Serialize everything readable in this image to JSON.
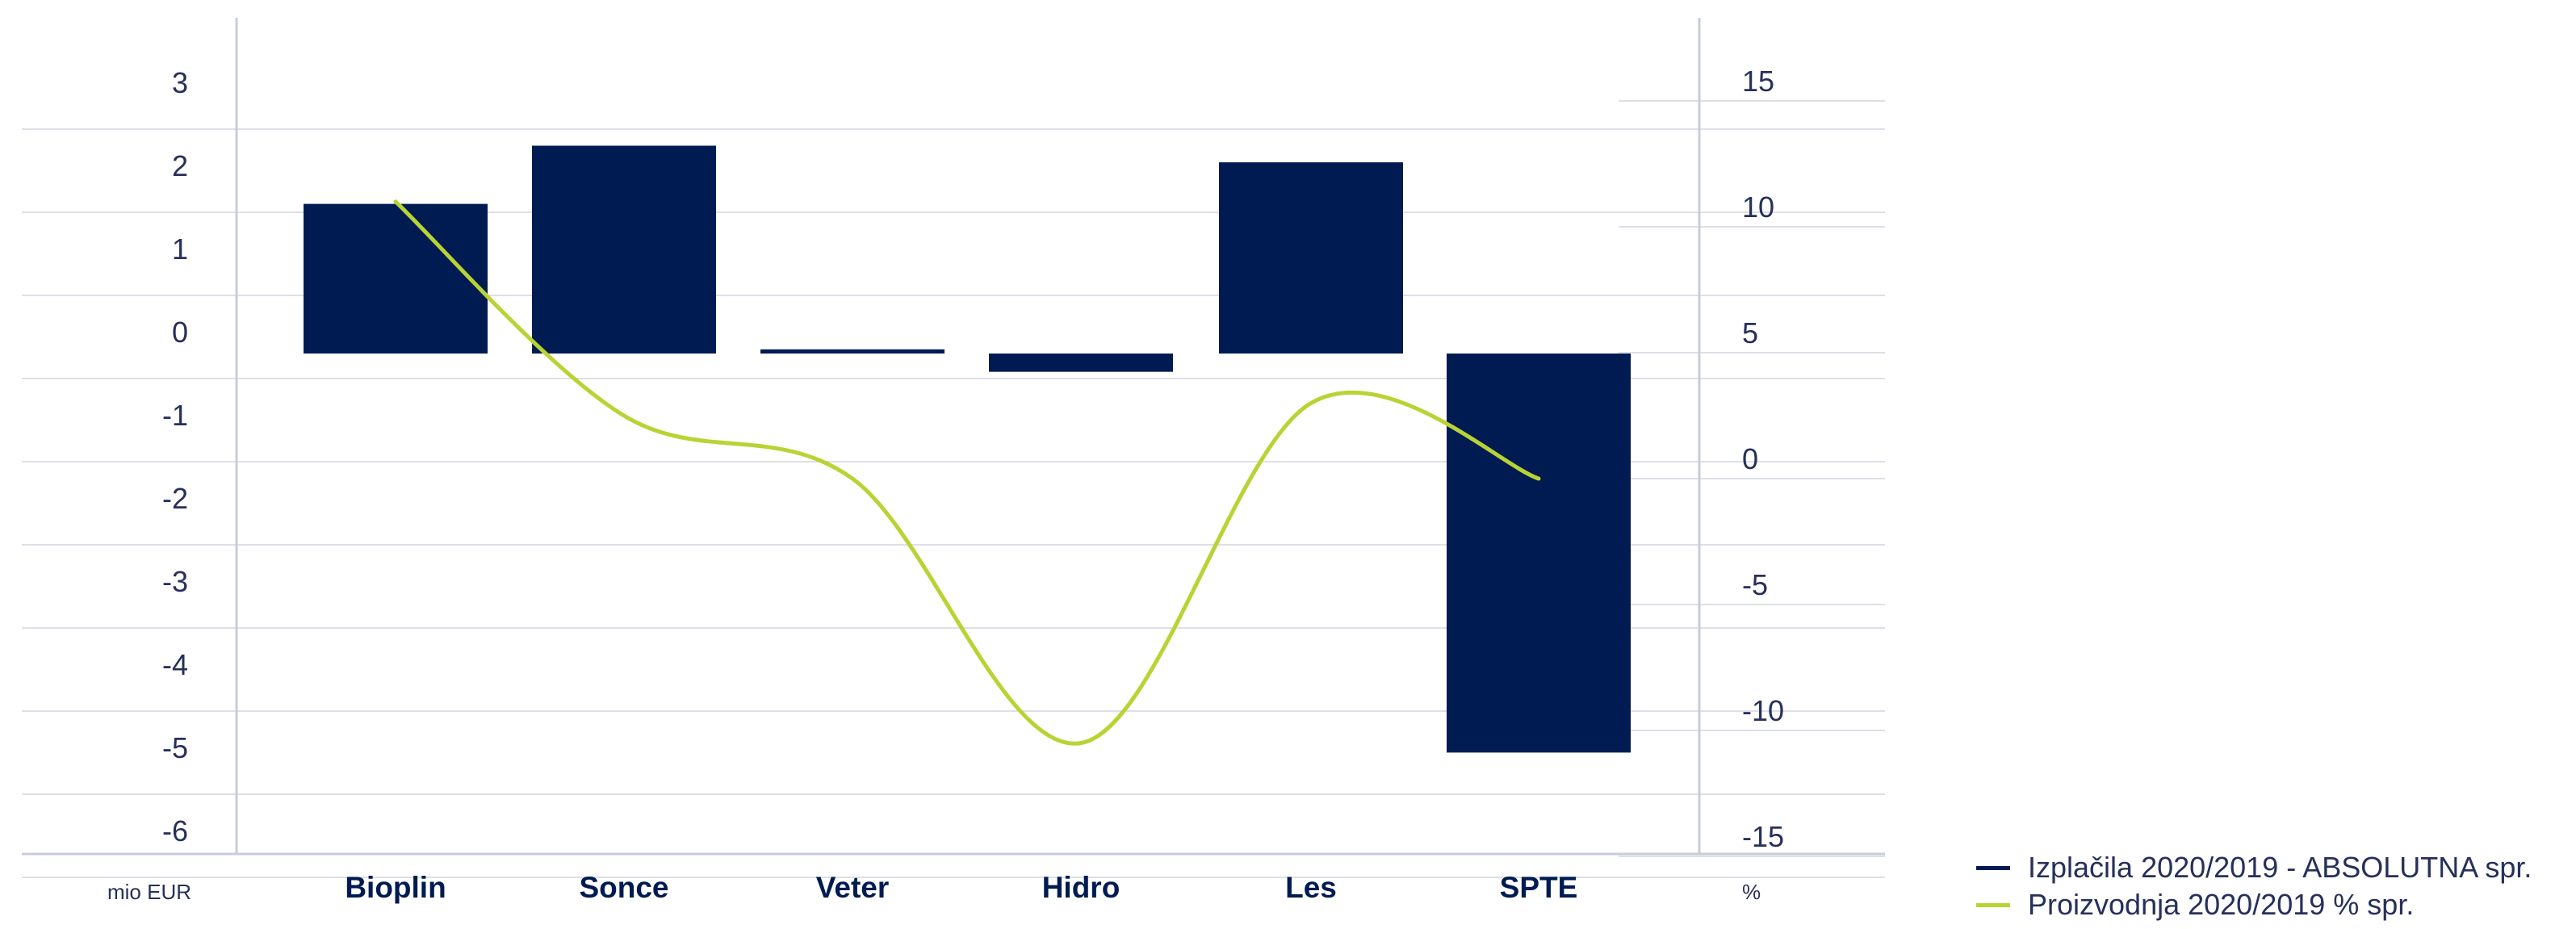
{
  "chart_data": {
    "type": "bar+line",
    "categories": [
      "Bioplin",
      "Sonce",
      "Veter",
      "Hidro",
      "Les",
      "SPTE"
    ],
    "series": [
      {
        "name": "Izplačila 2020/2019 - ABSOLUTNA spr.",
        "type": "bar",
        "axis": "left",
        "color": "#001b52",
        "values": [
          1.8,
          2.5,
          0.05,
          -0.22,
          2.3,
          -4.8
        ]
      },
      {
        "name": "Proizvodnja 2020/2019 % spr.",
        "type": "line",
        "axis": "right",
        "color": "#b9d334",
        "values": [
          11,
          2.5,
          0.0,
          -10.5,
          3.0,
          0.0
        ]
      }
    ],
    "y_left": {
      "label": "mio EUR",
      "ticks": [
        3,
        2,
        1,
        0,
        -1,
        -2,
        -3,
        -4,
        -5,
        -6
      ],
      "range": [
        -6,
        3
      ]
    },
    "y_right": {
      "label": "%",
      "ticks": [
        15,
        10,
        5,
        0,
        -5,
        -10,
        -15
      ],
      "range": [
        -15,
        15
      ]
    },
    "grid": true,
    "legend_position": "bottom-right"
  },
  "colors": {
    "bar": "#001b52",
    "line": "#b9d334",
    "grid": "#dde0e8",
    "axis": "#c8ccda",
    "text": "#26305a"
  }
}
